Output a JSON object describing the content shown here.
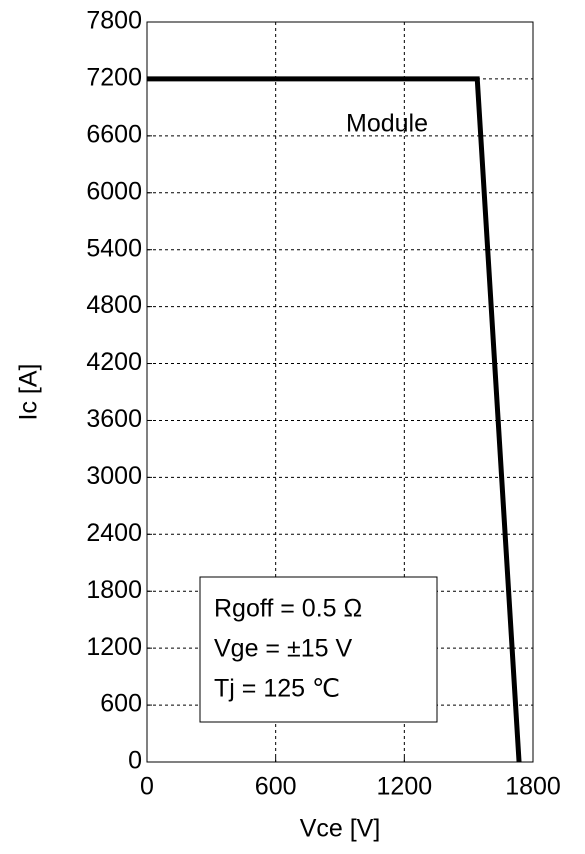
{
  "chart_data": {
    "type": "line",
    "xlabel": "Vce [V]",
    "ylabel": "Ic [A]",
    "x": [
      0,
      1540,
      1735
    ],
    "series": [
      {
        "name": "Module",
        "color": "#000000",
        "values": [
          7200,
          7200,
          0
        ]
      }
    ],
    "xlim": [
      0,
      1800
    ],
    "xticks": [
      0,
      600,
      1200,
      1800
    ],
    "ylim": [
      0,
      7800
    ],
    "yticks": [
      0,
      600,
      1200,
      1800,
      2400,
      3000,
      3600,
      4200,
      4800,
      5400,
      6000,
      6600,
      7200,
      7800
    ],
    "grid": true,
    "annotations": [
      "Rgoff = 0.5 Ω",
      "Vge = ±15 V",
      "Tj = 125 ℃"
    ]
  }
}
